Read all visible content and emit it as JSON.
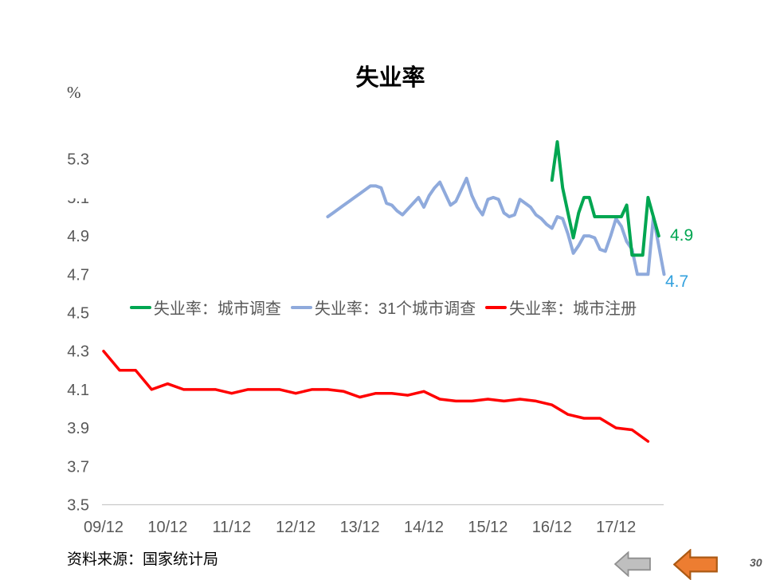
{
  "slide": {
    "source_label": "资料来源：国家统计局"
  },
  "chart_data": {
    "type": "line",
    "title": "失业率",
    "unit_label": "%",
    "grid": false,
    "legend_position": "inside-middle",
    "y_axis_range": [
      3.5,
      5.5
    ],
    "y_ticks": [
      5.3,
      5.1,
      4.9,
      4.7,
      4.5,
      4.3,
      4.1,
      3.9,
      3.7,
      3.5
    ],
    "x_tick_labels": [
      "09/12",
      "10/12",
      "11/12",
      "12/12",
      "13/12",
      "14/12",
      "15/12",
      "16/12",
      "17/12"
    ],
    "x_tick_months": [
      0,
      12,
      24,
      36,
      48,
      60,
      72,
      84,
      96
    ],
    "series": [
      {
        "name": "失业率：城市调查",
        "color": "#00A651",
        "start_month": 84,
        "step_months": 1,
        "values": [
          5.19,
          5.39,
          5.15,
          5.02,
          4.89,
          5.02,
          5.1,
          5.1,
          5.0,
          5.0,
          5.0,
          5.0,
          5.0,
          5.0,
          5.06,
          4.8,
          4.8,
          4.8,
          5.1,
          5.0,
          4.9
        ]
      },
      {
        "name": "失业率：31个城市调查",
        "color": "#8FAADC",
        "start_month": 42,
        "step_months": 1,
        "values": [
          5.0,
          5.02,
          5.04,
          5.06,
          5.08,
          5.1,
          5.12,
          5.14,
          5.16,
          5.16,
          5.15,
          5.07,
          5.06,
          5.03,
          5.01,
          5.04,
          5.07,
          5.1,
          5.05,
          5.11,
          5.15,
          5.18,
          5.12,
          5.06,
          5.08,
          5.14,
          5.2,
          5.11,
          5.05,
          5.01,
          5.09,
          5.1,
          5.09,
          5.02,
          5.0,
          5.01,
          5.09,
          5.07,
          5.05,
          5.01,
          4.99,
          4.96,
          4.94,
          5.0,
          4.99,
          4.91,
          4.81,
          4.85,
          4.9,
          4.9,
          4.89,
          4.83,
          4.82,
          4.9,
          4.99,
          4.95,
          4.87,
          4.83,
          4.7,
          4.7,
          4.7,
          5.0,
          4.85,
          4.7
        ]
      },
      {
        "name": "失业率：城市注册",
        "color": "#FF0000",
        "start_month": 0,
        "step_months": 3,
        "values": [
          4.3,
          4.2,
          4.2,
          4.1,
          4.13,
          4.1,
          4.1,
          4.1,
          4.08,
          4.1,
          4.1,
          4.1,
          4.08,
          4.1,
          4.1,
          4.09,
          4.06,
          4.08,
          4.08,
          4.07,
          4.09,
          4.05,
          4.04,
          4.04,
          4.05,
          4.04,
          4.05,
          4.04,
          4.02,
          3.97,
          3.95,
          3.95,
          3.9,
          3.89,
          3.83
        ]
      }
    ],
    "end_labels": [
      {
        "text": "4.9",
        "color": "#00A651"
      },
      {
        "text": "4.7",
        "color": "#33A1DE"
      }
    ]
  },
  "nav": {
    "arrows": [
      {
        "direction": "left",
        "fill": "#BFBFBF",
        "stroke": "#8F8F8F"
      },
      {
        "direction": "left",
        "fill": "#ED7D31",
        "stroke": "#AC5A14"
      }
    ],
    "page_number": "30"
  }
}
